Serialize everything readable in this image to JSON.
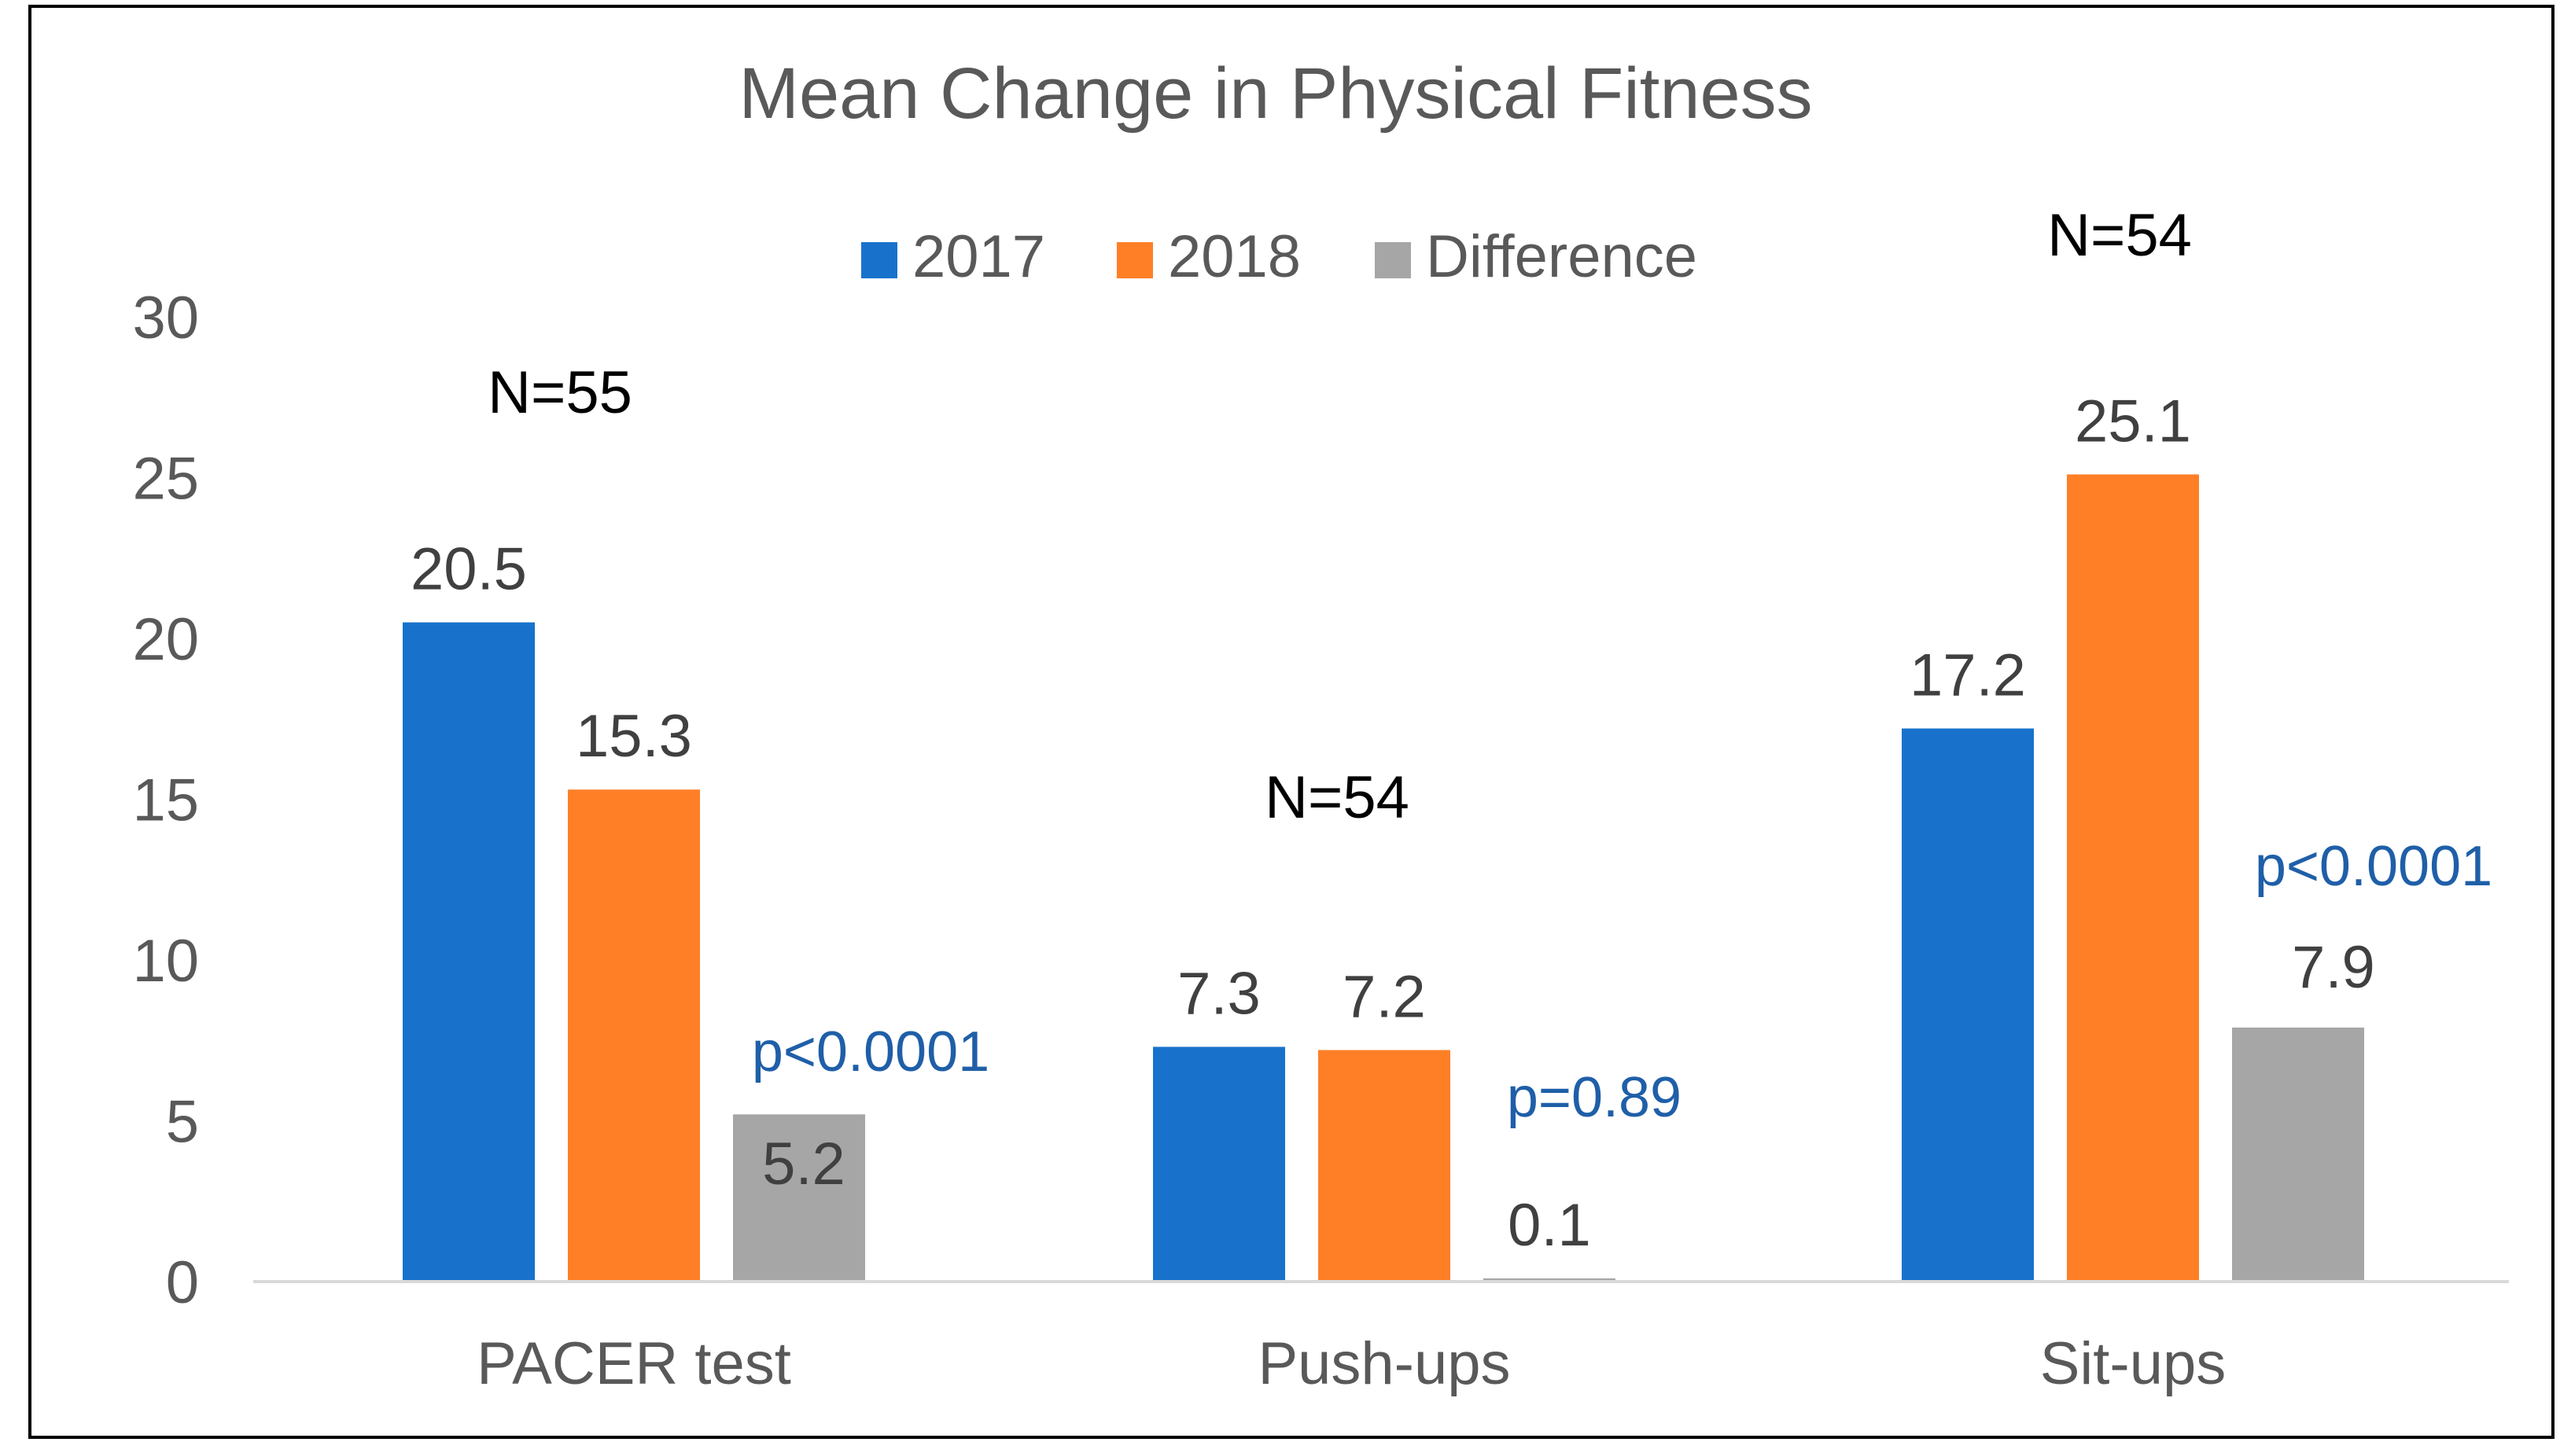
{
  "chart_data": {
    "type": "bar",
    "title": "Mean Change in Physical Fitness",
    "xlabel": "",
    "ylabel": "",
    "ylim": [
      0,
      30
    ],
    "yticks": [
      0,
      5,
      10,
      15,
      20,
      25,
      30
    ],
    "ytick_labels": [
      "0",
      "5",
      "10",
      "15",
      "20",
      "25",
      "30"
    ],
    "grid": false,
    "legend_position": "top-center",
    "categories": [
      "PACER test",
      "Push-ups",
      "Sit-ups"
    ],
    "series": [
      {
        "name": "2017",
        "color": "#1872CC",
        "values": [
          20.5,
          7.3,
          17.2
        ],
        "labels": [
          "20.5",
          "7.3",
          "17.2"
        ]
      },
      {
        "name": "2018",
        "color": "#FF7F27",
        "values": [
          15.3,
          7.2,
          25.1
        ],
        "labels": [
          "15.3",
          "7.2",
          "25.1"
        ]
      },
      {
        "name": "Difference",
        "color": "#A6A6A6",
        "values": [
          5.2,
          0.1,
          7.9
        ],
        "labels": [
          "5.2",
          "0.1",
          "7.9"
        ]
      }
    ],
    "annotations": {
      "sample_sizes": [
        "N=55",
        "N=54",
        "N=54"
      ],
      "p_values": [
        "p<0.0001",
        "p=0.89",
        "p<0.0001"
      ],
      "p_value_color": "#1F5FA8"
    }
  }
}
